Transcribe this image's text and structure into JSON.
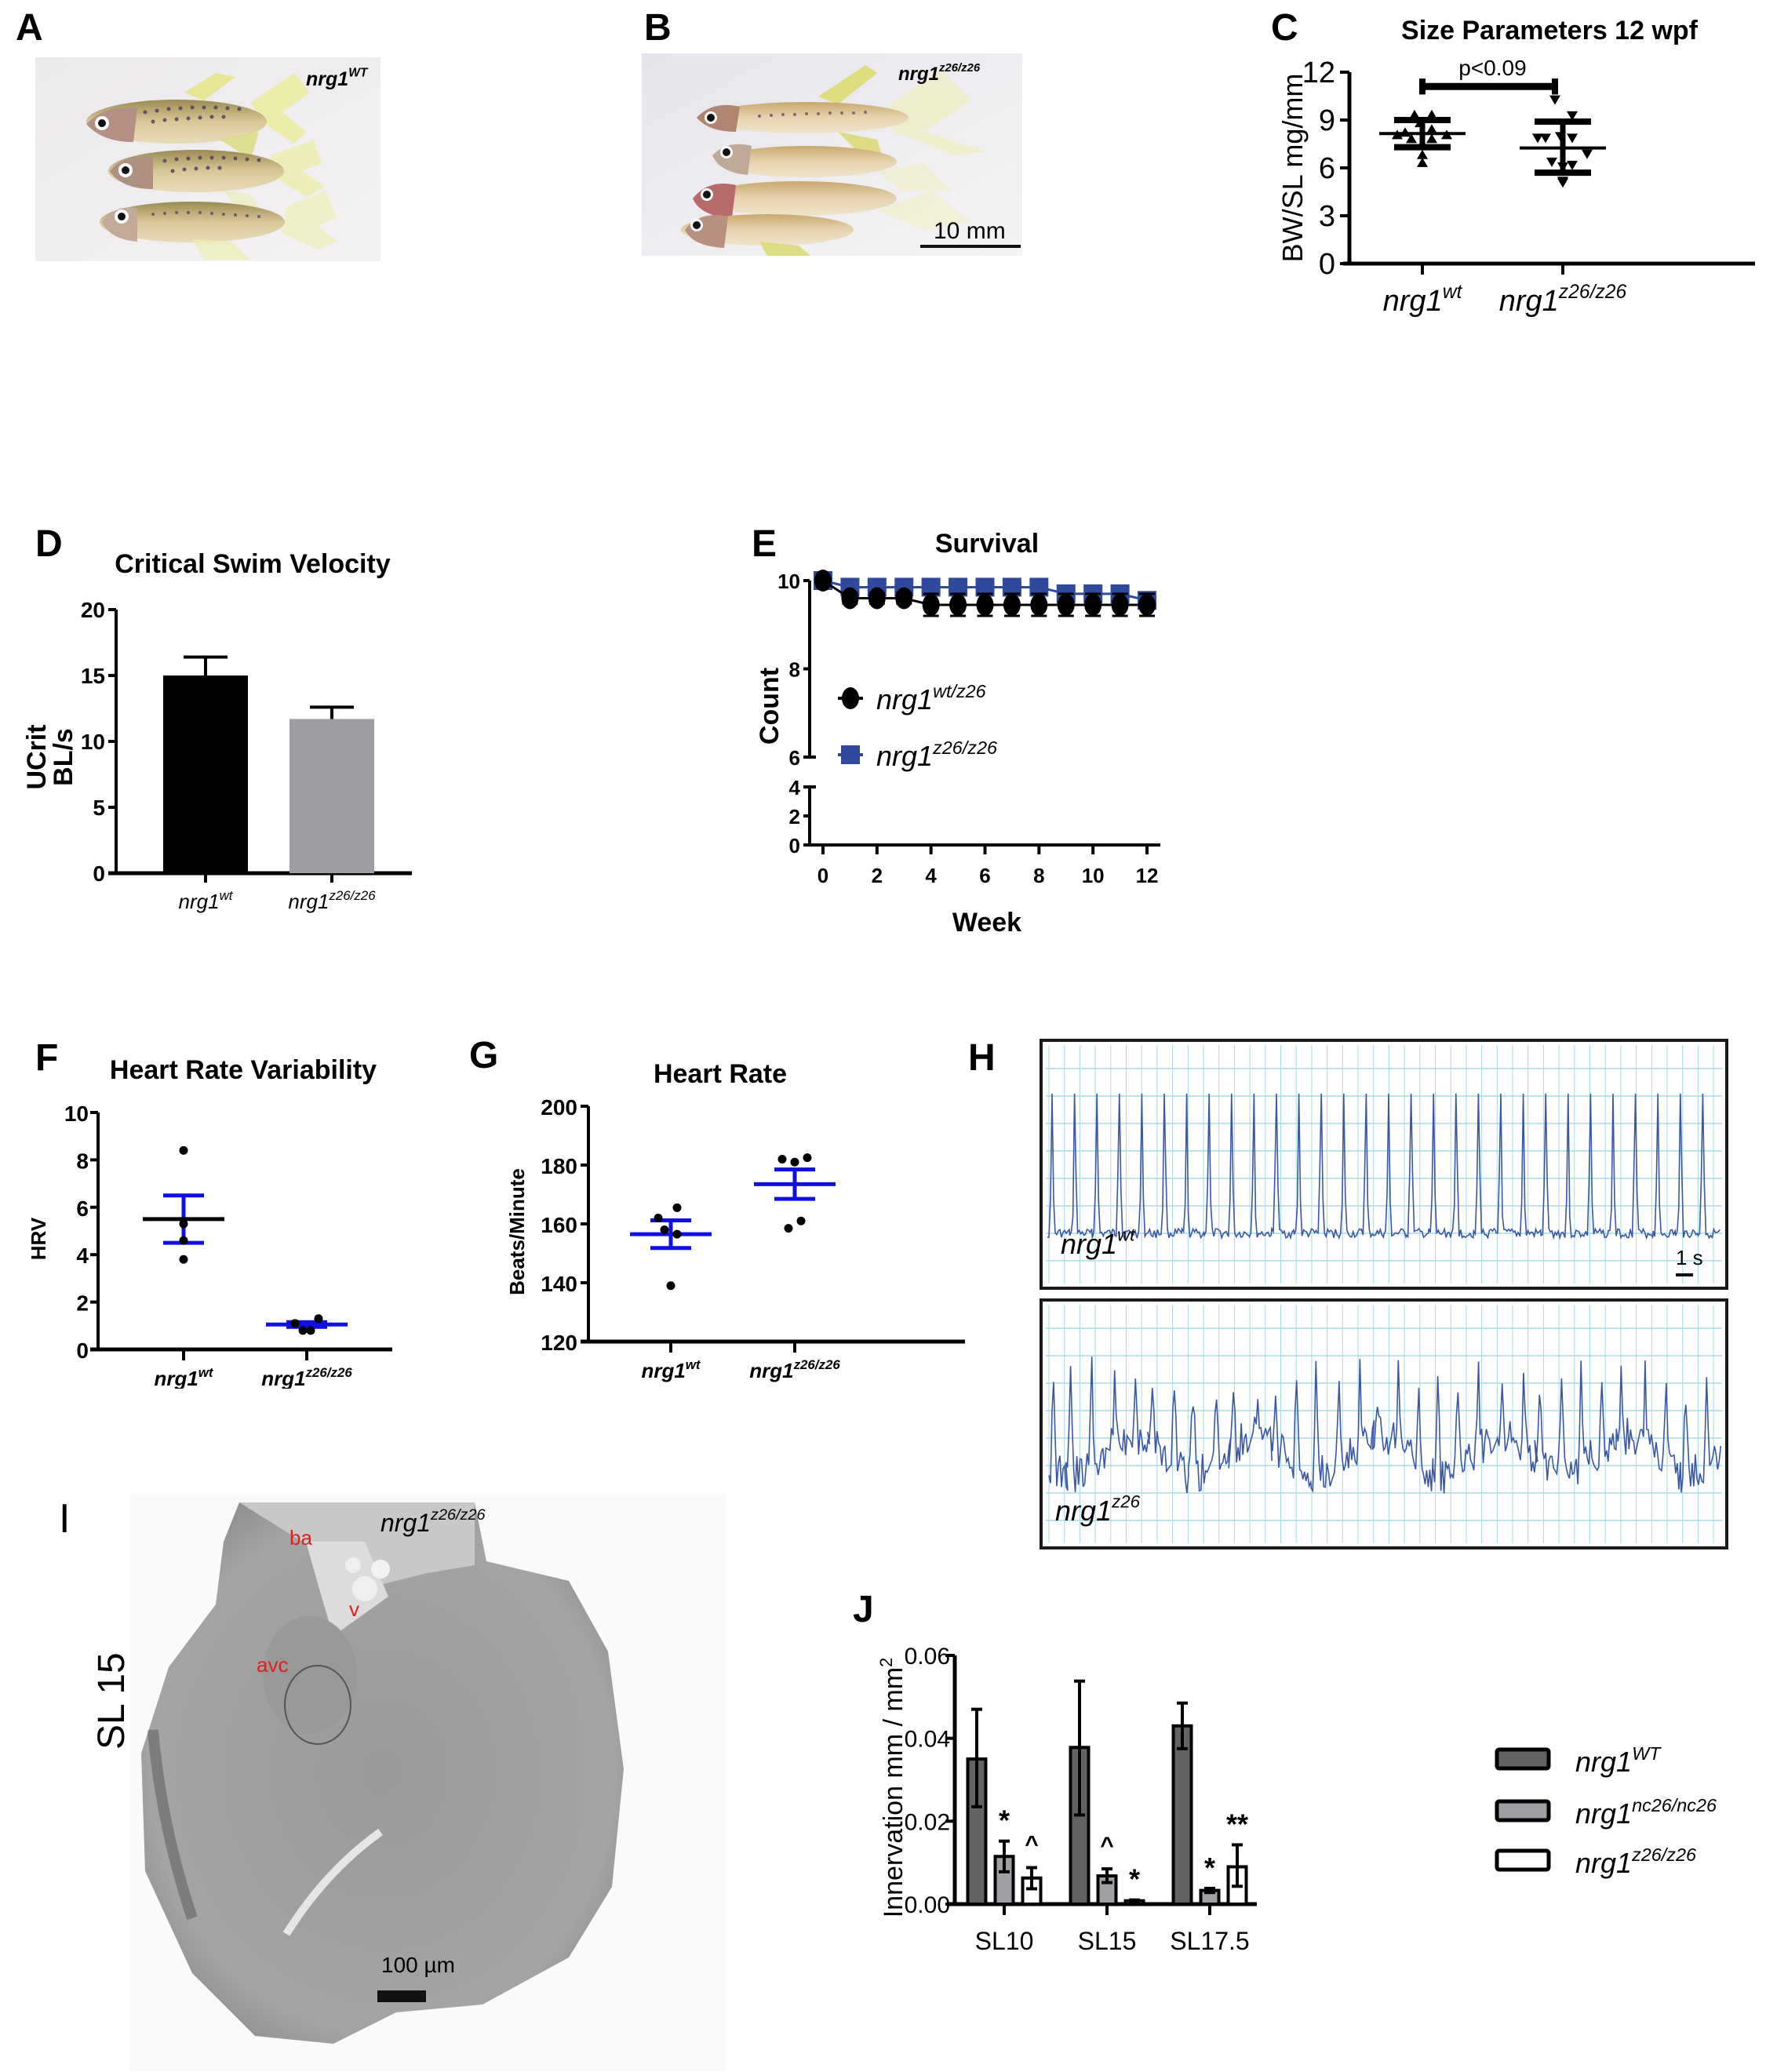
{
  "panels": {
    "A": {
      "letter": "A",
      "genotype_base": "nrg1",
      "genotype_sup": "WT",
      "fish_count": 3
    },
    "B": {
      "letter": "B",
      "genotype_base": "nrg1",
      "genotype_sup": "z26/z26",
      "fish_count": 4,
      "scale_label": "10 mm"
    },
    "C": {
      "letter": "C"
    },
    "D": {
      "letter": "D"
    },
    "E": {
      "letter": "E"
    },
    "F": {
      "letter": "F"
    },
    "G": {
      "letter": "G"
    },
    "H": {
      "letter": "H",
      "traces": [
        {
          "genotype_base": "nrg1",
          "genotype_sup": "wt",
          "rhythm": "regular",
          "beats": 30
        },
        {
          "genotype_base": "nrg1",
          "genotype_sup": "z26",
          "rhythm": "irregular",
          "beats": 33
        }
      ],
      "scale_label": "1 s",
      "trace_color": "#3a56a6",
      "grid_color": "#a8dbe6"
    },
    "I": {
      "letter": "I",
      "side_label": "SL 15",
      "genotype_base": "nrg1",
      "genotype_sup": "z26/z26",
      "annotations": [
        "ba",
        "v",
        "avc"
      ],
      "annotation_color": "#e0201a",
      "scale_label": "100 µm"
    },
    "J": {
      "letter": "J"
    }
  },
  "chart_data": [
    {
      "id": "C",
      "type": "scatter",
      "title": "Size Parameters 12 wpf",
      "xlabel": "",
      "ylabel": "BW/SL mg/mm",
      "ylim": [
        0,
        12
      ],
      "yticks": [
        0,
        3,
        6,
        9,
        12
      ],
      "categories": [
        {
          "base": "nrg1",
          "sup": "wt"
        },
        {
          "base": "nrg1",
          "sup": "z26/z26"
        }
      ],
      "series": [
        {
          "name": "nrg1 wt",
          "marker": "triangle-up",
          "mean": 8.15,
          "sd_low": 7.3,
          "sd_high": 9.0,
          "points": [
            9.3,
            9.3,
            8.8,
            8.4,
            8.2,
            8.05,
            8.05,
            7.8,
            7.8,
            7.5,
            6.8,
            6.3
          ]
        },
        {
          "name": "nrg1 z26/z26",
          "marker": "triangle-down",
          "mean": 7.25,
          "sd_low": 5.7,
          "sd_high": 8.9,
          "points": [
            10.3,
            9.3,
            8.0,
            7.9,
            7.9,
            7.9,
            6.9,
            6.4,
            6.2,
            6.1,
            5.1,
            5.2
          ]
        }
      ],
      "annotation": "p<0.09"
    },
    {
      "id": "D",
      "type": "bar",
      "title": "Critical Swim Velocity",
      "xlabel": "",
      "ylabel_lines": [
        "UCrit",
        "BL/s"
      ],
      "ylim": [
        0,
        20
      ],
      "yticks": [
        0,
        5,
        10,
        15,
        20
      ],
      "categories": [
        {
          "base": "nrg1",
          "sup": "wt"
        },
        {
          "base": "nrg1",
          "sup": "z26/z26"
        }
      ],
      "values": [
        15.0,
        11.7
      ],
      "error_high": [
        16.4,
        12.6
      ],
      "colors": [
        "#000000",
        "#9e9ea2"
      ]
    },
    {
      "id": "E",
      "type": "line",
      "title": "Survival",
      "xlabel": "Week",
      "ylabel": "Count",
      "xlim": [
        0,
        12
      ],
      "xticks": [
        0,
        2,
        4,
        6,
        8,
        10,
        12
      ],
      "ylim": [
        0,
        10
      ],
      "yticks_upper": [
        6,
        8,
        10
      ],
      "yticks_lower": [
        0,
        2,
        4
      ],
      "axis_break": [
        4,
        6
      ],
      "x": [
        0,
        1,
        2,
        3,
        4,
        5,
        6,
        7,
        8,
        9,
        10,
        11,
        12
      ],
      "series": [
        {
          "name": "nrg1 wt/z26",
          "sup": "wt/z26",
          "base": "nrg1",
          "marker": "circle",
          "color": "#000000",
          "values": [
            10,
            9.6,
            9.6,
            9.6,
            9.45,
            9.45,
            9.45,
            9.45,
            9.45,
            9.45,
            9.45,
            9.45,
            9.45
          ],
          "error": [
            0,
            0.12,
            0.12,
            0.12,
            0.25,
            0.25,
            0.25,
            0.25,
            0.25,
            0.25,
            0.25,
            0.25,
            0.25
          ]
        },
        {
          "name": "nrg1 z26/z26",
          "sup": "z26/z26",
          "base": "nrg1",
          "marker": "square",
          "color": "#2f4a9c",
          "values": [
            10,
            9.85,
            9.85,
            9.85,
            9.85,
            9.85,
            9.85,
            9.85,
            9.85,
            9.7,
            9.7,
            9.7,
            9.55
          ],
          "error": [
            0,
            0.12,
            0.12,
            0.12,
            0.12,
            0.12,
            0.12,
            0.12,
            0.12,
            0.18,
            0.18,
            0.18,
            0.18
          ]
        }
      ],
      "legend": "left-middle"
    },
    {
      "id": "F",
      "type": "scatter",
      "title": "Heart Rate Variability",
      "ylabel": "HRV",
      "ylim": [
        0,
        10
      ],
      "yticks": [
        0,
        2,
        4,
        6,
        8,
        10
      ],
      "categories": [
        {
          "base": "nrg1",
          "sup": "wt"
        },
        {
          "base": "nrg1",
          "sup": "z26/z26"
        }
      ],
      "series": [
        {
          "name": "nrg1 wt",
          "mean": 5.5,
          "sem_low": 4.5,
          "sem_high": 6.5,
          "points": [
            8.4,
            5.3,
            4.6,
            3.8
          ],
          "point_offsets": [
            0,
            0,
            0,
            0
          ]
        },
        {
          "name": "nrg1 z26/z26",
          "mean": 1.05,
          "sem_low": 0.95,
          "sem_high": 1.15,
          "points": [
            1.1,
            0.8,
            0.8,
            1.3
          ],
          "point_offsets": [
            -1.5,
            -0.5,
            0.5,
            1.5
          ]
        }
      ],
      "mean_color": "#000000",
      "error_color": "#1010e0"
    },
    {
      "id": "G",
      "type": "scatter",
      "title": "Heart  Rate",
      "ylabel": "Beats/Minute",
      "ylim": [
        120,
        200
      ],
      "yticks": [
        120,
        140,
        160,
        180,
        200
      ],
      "categories": [
        {
          "base": "nrg1",
          "sup": "wt"
        },
        {
          "base": "nrg1",
          "sup": "z26/z26"
        }
      ],
      "series": [
        {
          "name": "nrg1 wt",
          "mean": 156.5,
          "sem_low": 151.8,
          "sem_high": 161.2,
          "points": [
            165.5,
            162,
            158,
            156.5,
            139
          ],
          "point_offsets": [
            1,
            -2,
            -1,
            1,
            0
          ]
        },
        {
          "name": "nrg1 z26/z26",
          "mean": 173.5,
          "sem_low": 168.5,
          "sem_high": 178.5,
          "points": [
            182,
            181,
            182.5,
            161,
            158.5
          ],
          "point_offsets": [
            -2,
            0,
            2,
            1,
            -1
          ]
        }
      ],
      "mean_color": "#1010e0",
      "error_color": "#1010e0"
    },
    {
      "id": "J",
      "type": "bar",
      "title": "",
      "xlabel": "",
      "ylabel": "Innervation mm / mm",
      "ylabel_sup": "2",
      "ylim": [
        0,
        0.06
      ],
      "yticks": [
        "0.00",
        "0.02",
        "0.04",
        "0.06"
      ],
      "categories": [
        "SL10",
        "SL15",
        "SL17.5"
      ],
      "series": [
        {
          "name": "nrg1",
          "sup": "WT",
          "color": "#636363",
          "values": [
            0.035,
            0.0378,
            0.043
          ],
          "err_low": [
            0.0235,
            0.0215,
            0.0375
          ],
          "err_high": [
            0.047,
            0.0538,
            0.0485
          ],
          "marks": [
            "",
            "",
            ""
          ]
        },
        {
          "name": "nrg1",
          "sup": "nc26/nc26",
          "color": "#a0a0a4",
          "values": [
            0.0115,
            0.0068,
            0.0033
          ],
          "err_low": [
            0.0078,
            0.0052,
            0.0028
          ],
          "err_high": [
            0.0152,
            0.0085,
            0.0038
          ],
          "marks": [
            "*",
            "^",
            "*"
          ]
        },
        {
          "name": "nrg1",
          "sup": "z26/z26",
          "color": "#ffffff",
          "values": [
            0.0063,
            0.0008,
            0.009
          ],
          "err_low": [
            0.0037,
            0.0006,
            0.0043
          ],
          "err_high": [
            0.0088,
            0.001,
            0.0143
          ],
          "marks": [
            "^",
            "*",
            "**"
          ]
        }
      ],
      "legend": "right"
    }
  ]
}
